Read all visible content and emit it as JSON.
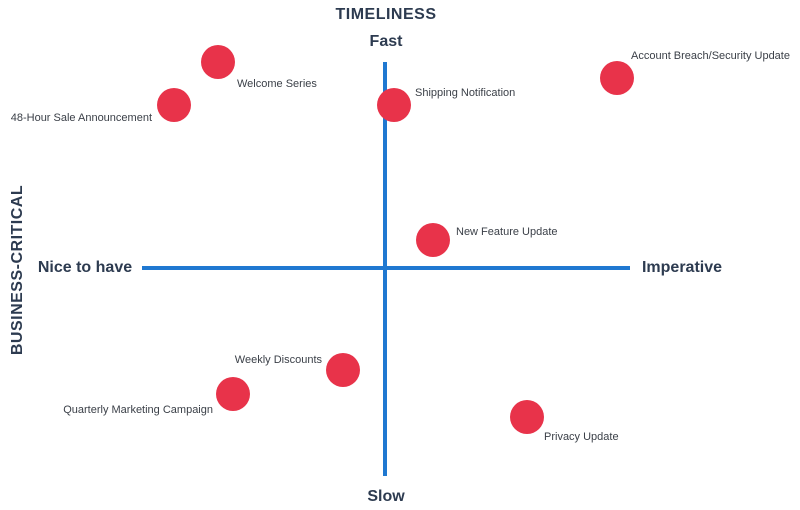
{
  "title": "TIMELINESS",
  "side_label": "BUSINESS-CRITICAL",
  "axes": {
    "top": "Fast",
    "bottom": "Slow",
    "left": "Nice to have",
    "right": "Imperative"
  },
  "items": [
    {
      "label": "Welcome Series"
    },
    {
      "label": "48-Hour Sale Announcement"
    },
    {
      "label": "Shipping Notification"
    },
    {
      "label": "Account Breach/Security Update"
    },
    {
      "label": "New Feature Update"
    },
    {
      "label": "Weekly Discounts"
    },
    {
      "label": "Quarterly Marketing Campaign"
    },
    {
      "label": "Privacy Update"
    }
  ]
}
